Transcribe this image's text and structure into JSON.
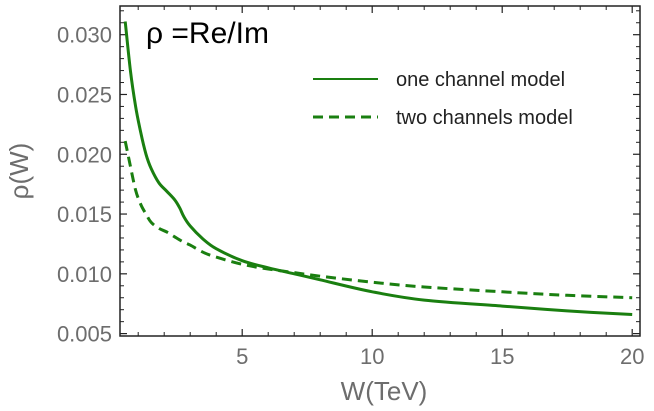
{
  "chart_data": {
    "type": "line",
    "title": "",
    "annotation": "ρ =Re/Im",
    "xlabel": "W(TeV)",
    "ylabel": "ρ(W)",
    "xlim": [
      0.3,
      20.3
    ],
    "ylim": [
      0.0048,
      0.0324
    ],
    "x_ticks": [
      5,
      10,
      15,
      20
    ],
    "x_tick_labels": [
      "5",
      "10",
      "15",
      "20"
    ],
    "y_ticks": [
      0.005,
      0.01,
      0.015,
      0.02,
      0.025,
      0.03
    ],
    "y_tick_labels": [
      "0.005",
      "0.010",
      "0.015",
      "0.020",
      "0.025",
      "0.030"
    ],
    "grid": false,
    "legend_position": "top-right",
    "colors": {
      "series": "#1a7f10",
      "axis": "#222222",
      "tick_text": "#6d6d6d"
    },
    "series": [
      {
        "name": "one channel model",
        "style": "solid",
        "x": [
          0.5,
          0.7,
          0.9,
          1.1,
          1.3,
          1.5,
          1.8,
          2.1,
          2.4,
          2.6,
          2.75,
          3.0,
          3.5,
          4.0,
          5.0,
          6.0,
          7.0,
          8.0,
          10.0,
          12.0,
          15.0,
          17.5,
          20.0
        ],
        "values": [
          0.0311,
          0.027,
          0.024,
          0.0218,
          0.02,
          0.0188,
          0.0176,
          0.0169,
          0.0162,
          0.0155,
          0.0148,
          0.014,
          0.0129,
          0.0121,
          0.0111,
          0.0105,
          0.01,
          0.0095,
          0.0085,
          0.0078,
          0.0073,
          0.0069,
          0.0066
        ]
      },
      {
        "name": "two channels model",
        "style": "dashed",
        "x": [
          0.5,
          0.7,
          0.9,
          1.1,
          1.3,
          1.5,
          1.8,
          2.1,
          2.4,
          2.7,
          3.0,
          3.5,
          4.0,
          5.0,
          6.0,
          7.0,
          8.0,
          10.0,
          12.0,
          15.0,
          17.5,
          20.0
        ],
        "values": [
          0.0211,
          0.019,
          0.017,
          0.0158,
          0.015,
          0.0143,
          0.0138,
          0.0135,
          0.0131,
          0.0127,
          0.0124,
          0.0118,
          0.0114,
          0.0108,
          0.0104,
          0.0101,
          0.0098,
          0.0093,
          0.0089,
          0.0085,
          0.0082,
          0.008
        ]
      }
    ]
  }
}
